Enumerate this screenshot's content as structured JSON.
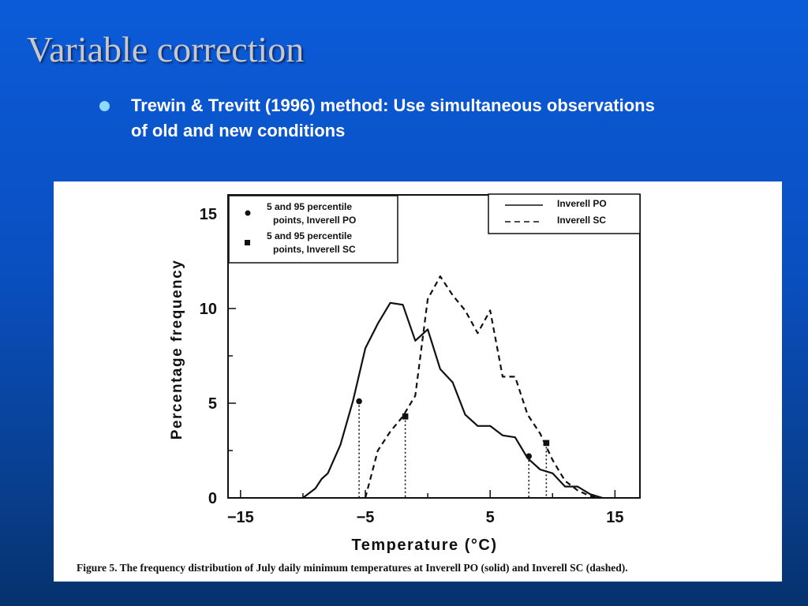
{
  "slide": {
    "title": "Variable correction",
    "bullet": "Trewin & Trevitt (1996) method:  Use simultaneous observations of old and new conditions"
  },
  "colors": {
    "background_top": "#0b5bd8",
    "background_bottom": "#06326d",
    "title": "#c8c8c8",
    "bullet_dot": "#8fd8ff",
    "figure_bg": "#ffffff",
    "ink": "#111111"
  },
  "chart_data": {
    "type": "line",
    "xlabel": "Temperature (°C)",
    "ylabel": "Percentage frequency",
    "xlim": [
      -16,
      17
    ],
    "ylim": [
      0,
      16
    ],
    "xticks": [
      -15,
      -5,
      5,
      15
    ],
    "xtick_labels": [
      "−15",
      "−5",
      "5",
      "15"
    ],
    "yticks": [
      0,
      5,
      10,
      15
    ],
    "ytick_labels": [
      "0",
      "5",
      "10",
      "15"
    ],
    "grid": false,
    "series": [
      {
        "name": "Inverell PO",
        "style": "solid",
        "x": [
          -10,
          -9,
          -8.5,
          -8,
          -7,
          -6,
          -5,
          -4,
          -3,
          -2,
          -1,
          0,
          1,
          2,
          3,
          4,
          5,
          6,
          7,
          8,
          9,
          10,
          11,
          12,
          13,
          14
        ],
        "y": [
          0,
          0.5,
          1,
          1.3,
          2.8,
          5.1,
          7.9,
          9.2,
          10.3,
          10.2,
          8.3,
          8.9,
          6.8,
          6.1,
          4.4,
          3.8,
          3.8,
          3.3,
          3.2,
          2.1,
          1.5,
          1.3,
          0.6,
          0.6,
          0.2,
          0
        ]
      },
      {
        "name": "Inverell SC",
        "style": "dashed",
        "x": [
          -5,
          -4,
          -3,
          -2,
          -1,
          0,
          1,
          2,
          3,
          4,
          5,
          6,
          7,
          8,
          9,
          10,
          11,
          12,
          13,
          14
        ],
        "y": [
          0,
          2.5,
          3.5,
          4.3,
          5.4,
          10.5,
          11.7,
          10.7,
          9.9,
          8.7,
          9.9,
          6.4,
          6.4,
          4.4,
          3.4,
          2,
          0.9,
          0.4,
          0.1,
          0
        ]
      }
    ],
    "percentile_points": [
      {
        "series": "Inverell PO",
        "marker": "circle",
        "x": -5.5,
        "y": 5.1
      },
      {
        "series": "Inverell PO",
        "marker": "circle",
        "x": 8.1,
        "y": 2.2
      },
      {
        "series": "Inverell SC",
        "marker": "square",
        "x": -1.8,
        "y": 4.3
      },
      {
        "series": "Inverell SC",
        "marker": "square",
        "x": 9.5,
        "y": 2.9
      }
    ],
    "legend_left": {
      "placement": "top-left",
      "items": [
        {
          "marker": "circle",
          "line1": "5  and  95  percentile",
          "line2": "points,  Inverell  PO"
        },
        {
          "marker": "square",
          "line1": "5  and  95  percentile",
          "line2": "points,  Inverell  SC"
        }
      ]
    },
    "legend_right": {
      "placement": "top-right",
      "items": [
        {
          "style": "solid",
          "label": "Inverell  PO"
        },
        {
          "style": "dashed",
          "label": "Inverell  SC"
        }
      ]
    },
    "caption": "Figure 5. The frequency distribution of July daily minimum temperatures at Inverell PO (solid) and Inverell SC (dashed)."
  }
}
